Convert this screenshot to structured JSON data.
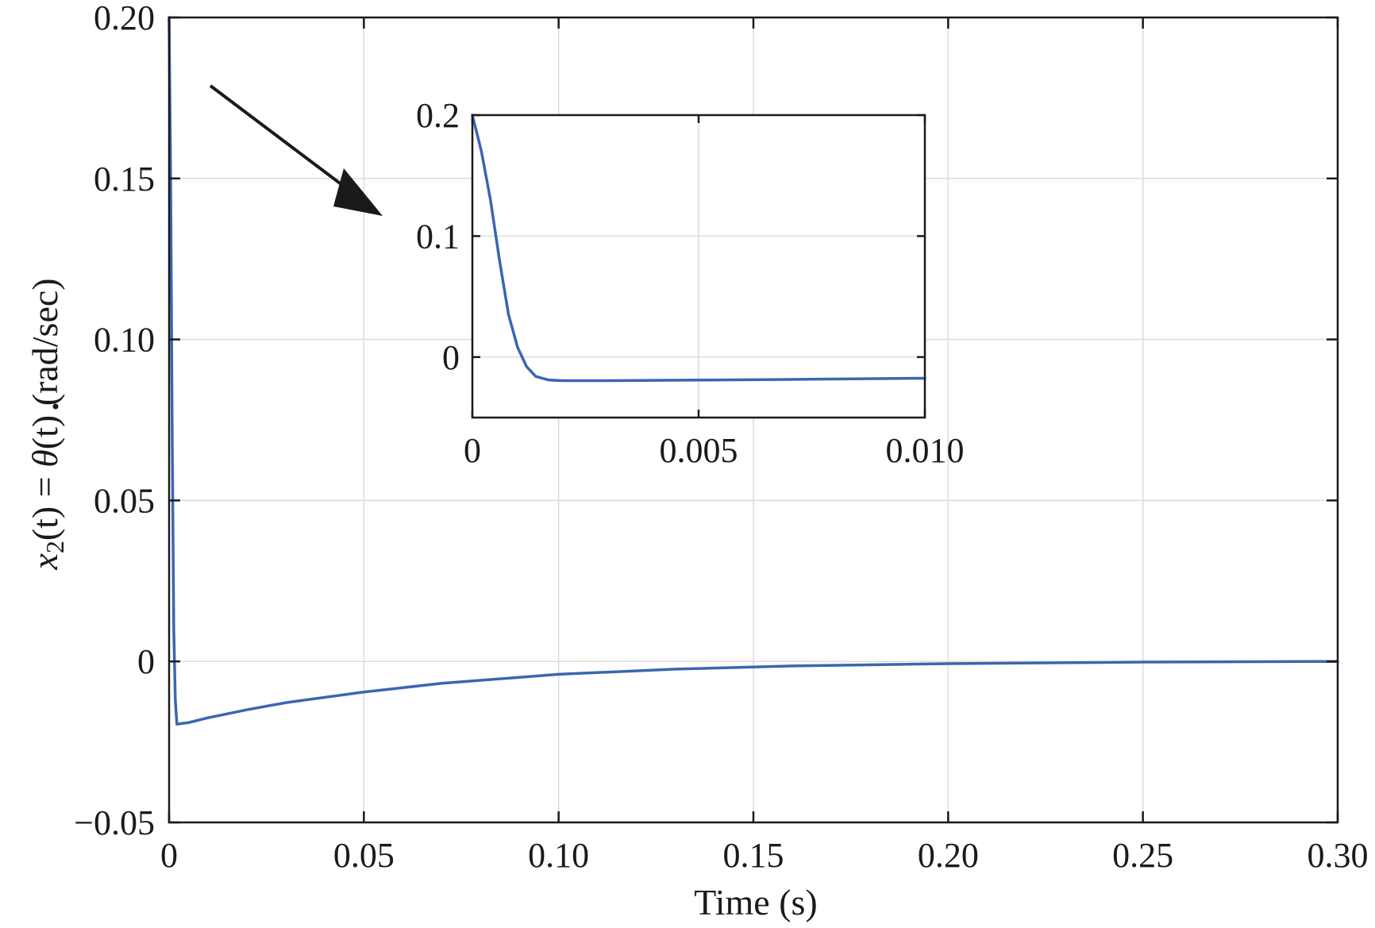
{
  "chart_data": [
    {
      "type": "line",
      "title": "",
      "xlabel": "Time (s)",
      "ylabel": {
        "var": "x",
        "sub": "2",
        "arg1": "(t) = ",
        "theta": "θ",
        "arg2": "(t) (rad/sec)"
      },
      "xlim": [
        0,
        0.3
      ],
      "ylim": [
        -0.05,
        0.2
      ],
      "xticks": [
        0,
        0.05,
        0.1,
        0.15,
        0.2,
        0.25,
        0.3
      ],
      "xtick_labels": [
        "0",
        "0.05",
        "0.10",
        "0.15",
        "0.20",
        "0.25",
        "0.30"
      ],
      "yticks": [
        -0.05,
        0,
        0.05,
        0.1,
        0.15,
        0.2
      ],
      "ytick_labels": [
        "−0.05",
        "0",
        "0.05",
        "0.10",
        "0.15",
        "0.20"
      ],
      "grid": true,
      "series": [
        {
          "color": "#3a66b0",
          "x": [
            0,
            0.0004,
            0.0008,
            0.0012,
            0.0016,
            0.002,
            0.005,
            0.01,
            0.02,
            0.03,
            0.05,
            0.07,
            0.1,
            0.13,
            0.16,
            0.2,
            0.25,
            0.3
          ],
          "y": [
            0.2,
            0.15,
            0.07,
            0.01,
            -0.012,
            -0.0195,
            -0.019,
            -0.0175,
            -0.015,
            -0.0128,
            -0.0095,
            -0.0068,
            -0.004,
            -0.0024,
            -0.0014,
            -0.0007,
            -0.0002,
            0.0
          ]
        }
      ]
    },
    {
      "type": "line",
      "title": "",
      "xlabel": "",
      "ylabel": "",
      "xlim": [
        0,
        0.01
      ],
      "ylim": [
        -0.05,
        0.2
      ],
      "xticks": [
        0,
        0.005,
        0.01
      ],
      "xtick_labels": [
        "0",
        "0.005",
        "0.010"
      ],
      "yticks": [
        0,
        0.1,
        0.2
      ],
      "ytick_labels": [
        "0",
        "0.1",
        "0.2"
      ],
      "grid": true,
      "series": [
        {
          "color": "#3a66b0",
          "x": [
            0,
            0.0002,
            0.0004,
            0.0006,
            0.0008,
            0.001,
            0.0012,
            0.0014,
            0.0017,
            0.002,
            0.003,
            0.005,
            0.007,
            0.01
          ],
          "y": [
            0.2,
            0.17,
            0.13,
            0.08,
            0.035,
            0.008,
            -0.008,
            -0.016,
            -0.019,
            -0.0195,
            -0.0195,
            -0.019,
            -0.0185,
            -0.0175
          ]
        }
      ]
    }
  ]
}
